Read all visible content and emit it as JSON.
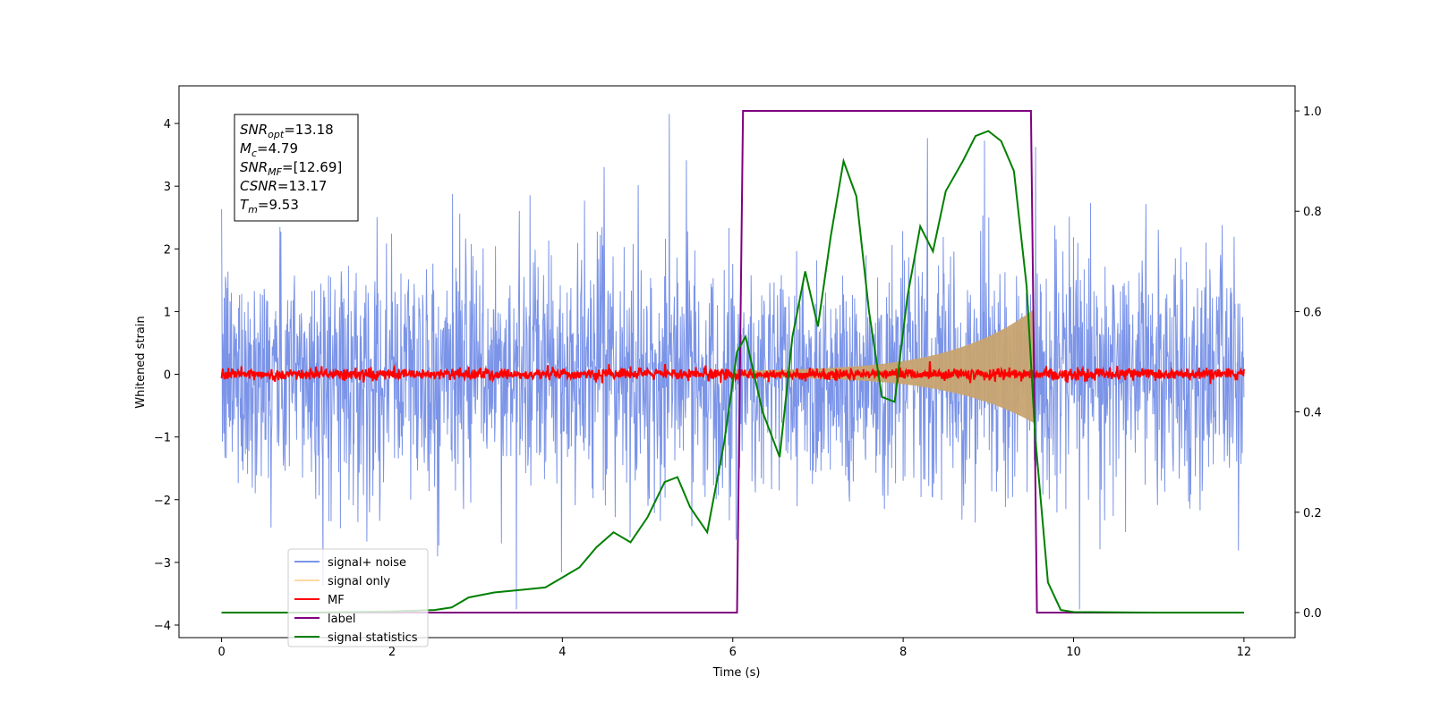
{
  "chart_data": {
    "type": "line",
    "xlabel": "Time (s)",
    "ylabel": "Whitened strain",
    "xlim": [
      -0.5,
      12.6
    ],
    "ylim": [
      -4.2,
      4.6
    ],
    "y2lim": [
      -0.05,
      1.05
    ],
    "xticks": [
      0,
      2,
      4,
      6,
      8,
      10,
      12
    ],
    "xtick_labels": [
      "0",
      "2",
      "4",
      "6",
      "8",
      "10",
      "12"
    ],
    "yticks": [
      4,
      3,
      2,
      1,
      0,
      -1,
      -2,
      -3,
      -4
    ],
    "ytick_labels": [
      "4",
      "3",
      "2",
      "1",
      "0",
      "−1",
      "−2",
      "−3",
      "−4"
    ],
    "y2ticks": [
      1.0,
      0.8,
      0.6,
      0.4,
      0.2,
      0.0
    ],
    "y2tick_labels": [
      "1.0",
      "0.8",
      "0.6",
      "0.4",
      "0.2",
      "0.0"
    ],
    "grid": false,
    "legend_position": "lower-left",
    "info_box": {
      "lines": [
        {
          "symbol": "SNR",
          "sub": "opt",
          "value": "=13.18"
        },
        {
          "symbol": "M",
          "sub": "c",
          "value": "=4.79"
        },
        {
          "symbol": "SNR",
          "sub": "MF",
          "value": "=[12.69]"
        },
        {
          "symbol": "CSNR",
          "sub": "",
          "value": "=13.17"
        },
        {
          "symbol": "T",
          "sub": "m",
          "value": "=9.53"
        }
      ]
    },
    "series": [
      {
        "name": "signal+ noise",
        "color": "#7b94e8",
        "axis": "left",
        "description_values": {
          "x_range": [
            0,
            12
          ],
          "typical_amplitude": 1.5,
          "peak": 4.2
        }
      },
      {
        "name": "signal only",
        "color": "#ffb347",
        "axis": "left",
        "chirp": {
          "start": 6.0,
          "end": 9.53,
          "amp_start": 0.05,
          "amp_end": 0.9
        }
      },
      {
        "name": "MF",
        "color": "#ff0000",
        "axis": "left",
        "typical_amplitude": 0.08
      },
      {
        "name": "label",
        "color": "#800080",
        "axis": "right",
        "x": [
          0,
          6.05,
          6.12,
          9.5,
          9.57,
          12
        ],
        "y": [
          0,
          0,
          1,
          1,
          0,
          0
        ]
      },
      {
        "name": "signal statistics",
        "color": "#008000",
        "axis": "right",
        "x": [
          0,
          1.0,
          2.0,
          2.5,
          2.7,
          2.9,
          3.2,
          3.5,
          3.8,
          4.0,
          4.2,
          4.4,
          4.6,
          4.8,
          5.0,
          5.2,
          5.35,
          5.5,
          5.7,
          5.9,
          6.05,
          6.15,
          6.35,
          6.55,
          6.7,
          6.85,
          7.0,
          7.15,
          7.3,
          7.45,
          7.6,
          7.75,
          7.9,
          8.05,
          8.2,
          8.35,
          8.5,
          8.7,
          8.85,
          9.0,
          9.15,
          9.3,
          9.45,
          9.55,
          9.7,
          9.85,
          10.0,
          11.0,
          12.0
        ],
        "y": [
          0.0,
          0.0,
          0.002,
          0.005,
          0.01,
          0.03,
          0.04,
          0.045,
          0.05,
          0.07,
          0.09,
          0.13,
          0.16,
          0.14,
          0.19,
          0.26,
          0.27,
          0.21,
          0.16,
          0.34,
          0.52,
          0.55,
          0.4,
          0.31,
          0.55,
          0.68,
          0.57,
          0.75,
          0.9,
          0.83,
          0.6,
          0.43,
          0.42,
          0.63,
          0.77,
          0.72,
          0.84,
          0.9,
          0.95,
          0.96,
          0.94,
          0.88,
          0.65,
          0.35,
          0.06,
          0.005,
          0.001,
          0.0,
          0.0
        ]
      }
    ],
    "legend_entries": [
      "signal+ noise",
      "signal only",
      "MF",
      "label",
      "signal statistics"
    ]
  }
}
